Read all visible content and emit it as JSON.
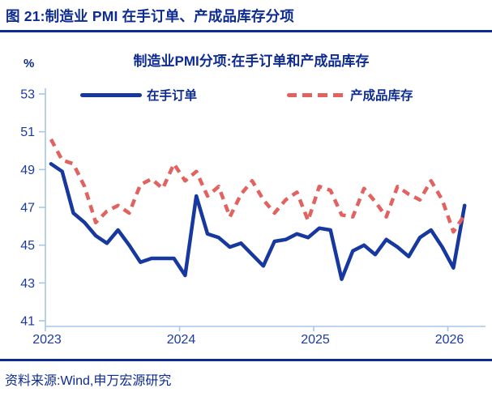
{
  "header": {
    "title": "图 21:制造业 PMI 在手订单、产成品库存分项"
  },
  "chart": {
    "title": "制造业PMI分项:在手订单和产成品库存",
    "unit_label": "%",
    "legend": [
      {
        "label": "在手订单"
      },
      {
        "label": "产成品库存"
      }
    ]
  },
  "chart_data": {
    "type": "line",
    "title": "制造业PMI分项:在手订单和产成品库存",
    "ylabel": "%",
    "ylim": [
      41,
      53
    ],
    "y_ticks": [
      53,
      51,
      49,
      47,
      45,
      43,
      41
    ],
    "x_ticks": [
      "2023",
      "2024",
      "2025",
      "2026"
    ],
    "grid": false,
    "legend_position": "top",
    "x": [
      "2023-01",
      "2023-02",
      "2023-03",
      "2023-04",
      "2023-05",
      "2023-06",
      "2023-07",
      "2023-08",
      "2023-09",
      "2023-10",
      "2023-11",
      "2023-12",
      "2024-01",
      "2024-02",
      "2024-03",
      "2024-04",
      "2024-05",
      "2024-06",
      "2024-07",
      "2024-08",
      "2024-09",
      "2024-10",
      "2024-11",
      "2024-12",
      "2025-01",
      "2025-02",
      "2025-03",
      "2025-04",
      "2025-05",
      "2025-06",
      "2025-07",
      "2025-08",
      "2025-09",
      "2025-10",
      "2025-11",
      "2025-12",
      "2026-01",
      "2026-02"
    ],
    "series": [
      {
        "name": "在手订单",
        "style": "solid",
        "color": "#17389f",
        "values": [
          49.3,
          48.9,
          46.7,
          46.2,
          45.5,
          45.1,
          45.8,
          45.0,
          44.1,
          44.3,
          44.3,
          44.3,
          43.4,
          47.6,
          45.6,
          45.4,
          44.9,
          45.1,
          44.5,
          43.9,
          45.2,
          45.3,
          45.6,
          45.4,
          45.9,
          45.8,
          43.2,
          44.7,
          45.0,
          44.5,
          45.3,
          44.9,
          44.4,
          45.4,
          45.8,
          44.9,
          43.8,
          47.1
        ]
      },
      {
        "name": "产成品库存",
        "style": "dashed",
        "color": "#e2625f",
        "values": [
          50.6,
          49.5,
          49.3,
          48.1,
          46.2,
          46.8,
          47.1,
          46.7,
          48.2,
          48.5,
          48.0,
          49.3,
          48.4,
          48.9,
          47.6,
          48.1,
          46.5,
          47.7,
          48.4,
          47.4,
          46.7,
          47.4,
          47.8,
          46.3,
          48.1,
          47.9,
          46.6,
          46.5,
          48.0,
          47.3,
          46.5,
          48.1,
          47.7,
          47.4,
          48.4,
          47.4,
          45.7,
          46.6
        ]
      }
    ]
  },
  "footer": {
    "text": "资料来源:Wind,申万宏源研究"
  },
  "colors": {
    "text_navy": "#0d2b90",
    "tick_navy": "#1d3aa2",
    "axis_light_blue": "#a7c6e8",
    "series_blue": "#17389f",
    "series_red": "#e2625f"
  }
}
